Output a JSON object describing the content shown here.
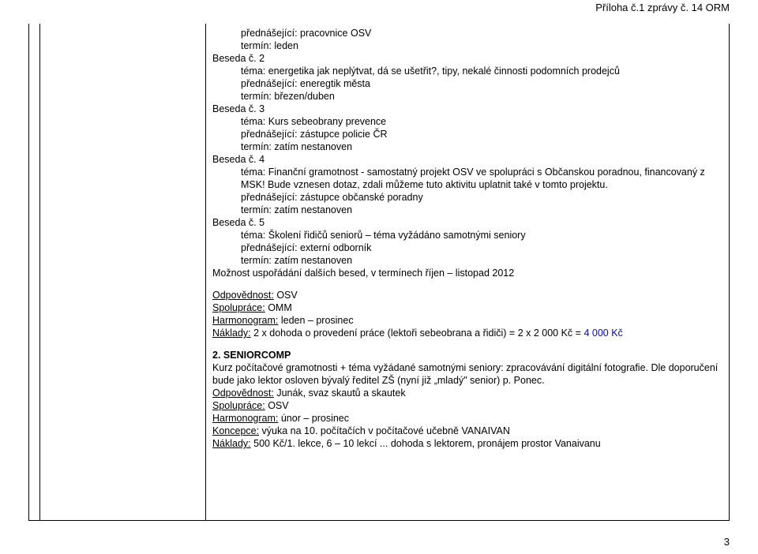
{
  "header": {
    "appendix": "Příloha č.1 zprávy č. 14 ORM"
  },
  "body": {
    "l1": "přednášející: pracovnice OSV",
    "l2": "termín: leden",
    "l3": "Beseda č. 2",
    "l4": "téma: energetika jak neplýtvat, dá se ušetřit?, tipy, nekalé činnosti podomních prodejců",
    "l5": "přednášející: eneregtik města",
    "l6": "termín: březen/duben",
    "l7": "Beseda č. 3",
    "l8": "téma: Kurs sebeobrany prevence",
    "l9": "přednášející: zástupce policie ČR",
    "l10": "termín: zatím nestanoven",
    "l11": "Beseda č. 4",
    "l12": "téma: Finanční gramotnost - samostatný projekt OSV ve spolupráci s Občanskou poradnou, financovaný z MSK! Bude vznesen dotaz, zdali můžeme tuto aktivitu uplatnit také v tomto projektu.",
    "l13": "přednášející: zástupce občanské poradny",
    "l14": "termín: zatím nestanoven",
    "l15": "Beseda č. 5",
    "l16": "téma: Školení řidičů seniorů – téma vyžádáno samotnými seniory",
    "l17": "přednášející: externí odborník",
    "l18": "termín: zatím nestanoven",
    "l19": "Možnost uspořádání dalších besed, v termínech říjen – listopad 2012",
    "r1_label": "Odpovědnost:",
    "r1_val": " OSV",
    "r2_label": "Spolupráce:",
    "r2_val": " OMM",
    "r3_label": "Harmonogram:",
    "r3_val": " leden – prosinec",
    "r4_label": "Náklady:",
    "r4_val": " 2 x dohoda o provedení práce (lektoři sebeobrana a řidiči) = 2 x 2 000 Kč = ",
    "r4_amount": "4 000 Kč",
    "s2_title": "2. SENIORCOMP",
    "s2_p": "Kurz počítačové gramotnosti + téma vyžádané samotnými seniory: zpracovávání digitální fotografie. Dle doporučení bude jako lektor osloven bývalý ředitel ZŠ (nyní již „mladý\" senior) p. Ponec.",
    "s2_r1_label": "Odpovědnost:",
    "s2_r1_val": " Junák, svaz skautů a skautek",
    "s2_r2_label": "Spolupráce:",
    "s2_r2_val": " OSV",
    "s2_r3_label": "Harmonogram:",
    "s2_r3_val": " únor – prosinec",
    "s2_r4_label": "Koncepce:",
    "s2_r4_val": " výuka na 10. počítačích v počítačové učebně VANAIVAN",
    "s2_r5_label": "Náklady:",
    "s2_r5_val": " 500 Kč/1. lekce, 6 – 10 lekcí  ... dohoda s lektorem, pronájem prostor Vanaivanu"
  },
  "footer": {
    "page": "3"
  }
}
